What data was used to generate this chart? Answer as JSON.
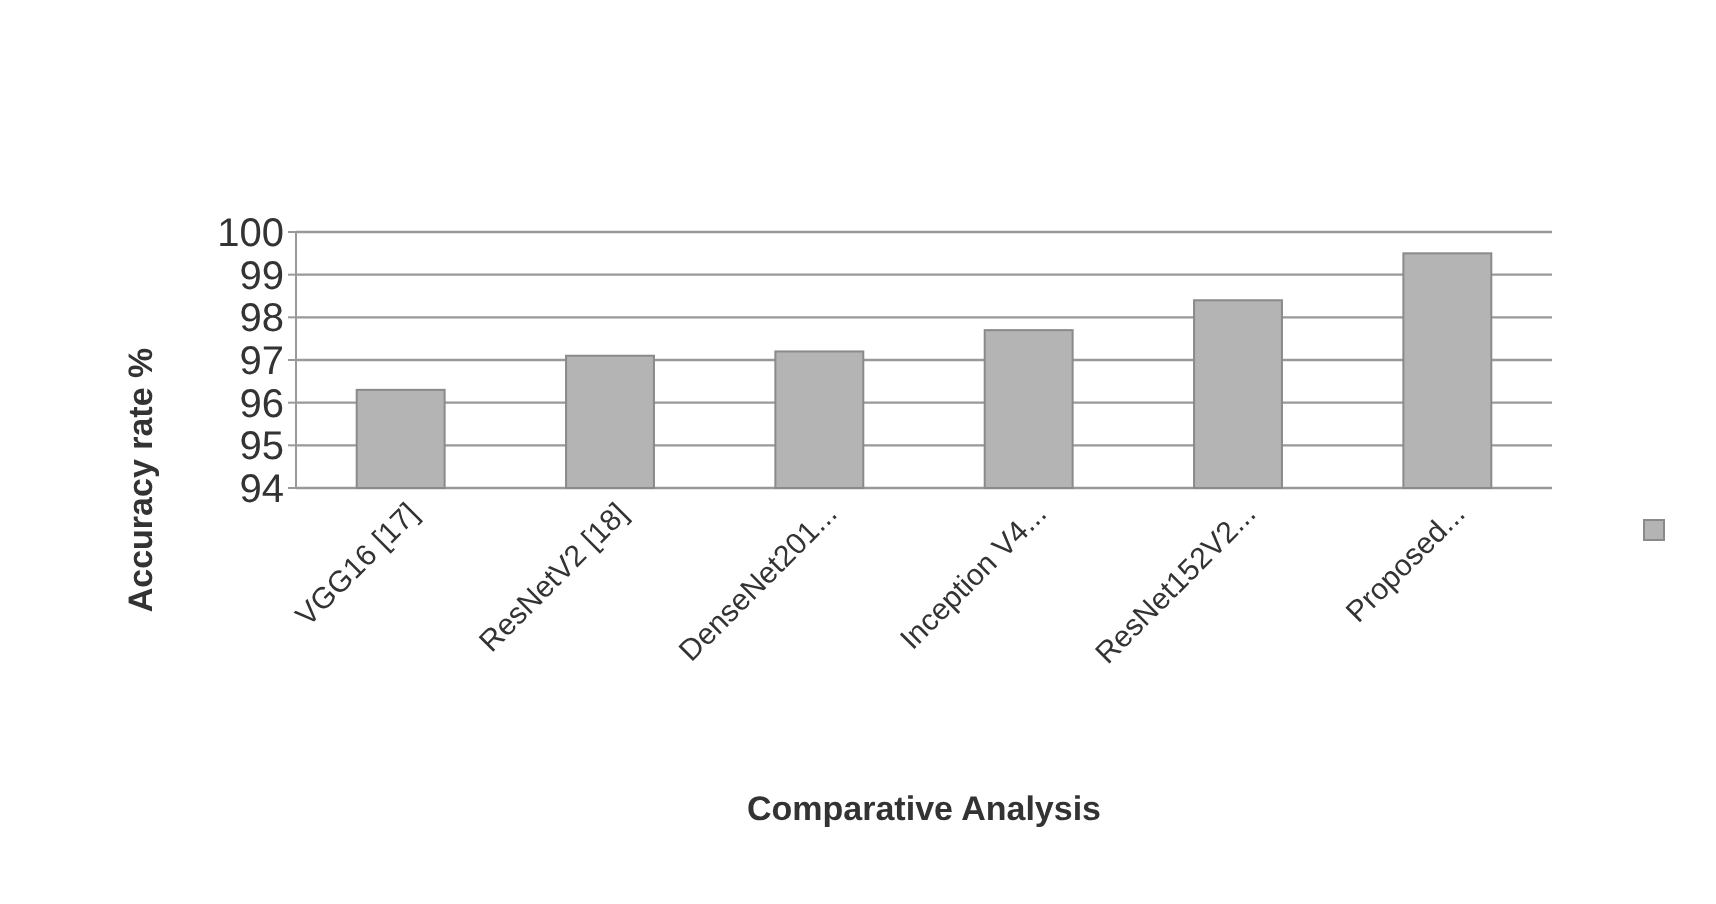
{
  "chart_data": {
    "type": "bar",
    "xlabel": "Comparative Analysis",
    "ylabel": "Accuracy rate %",
    "categories": [
      "VGG16 [17]",
      "ResNetV2 [18]",
      "DenseNet201...",
      "Inception V4...",
      "ResNet152V2...",
      "Proposed..."
    ],
    "series": [
      {
        "color": "#b4b4b4",
        "values": [
          96.3,
          97.1,
          97.2,
          97.7,
          98.4,
          99.5
        ]
      }
    ],
    "ylim": [
      94,
      100
    ],
    "yticks": [
      94,
      95,
      96,
      97,
      98,
      99,
      100
    ],
    "grid": "y"
  }
}
